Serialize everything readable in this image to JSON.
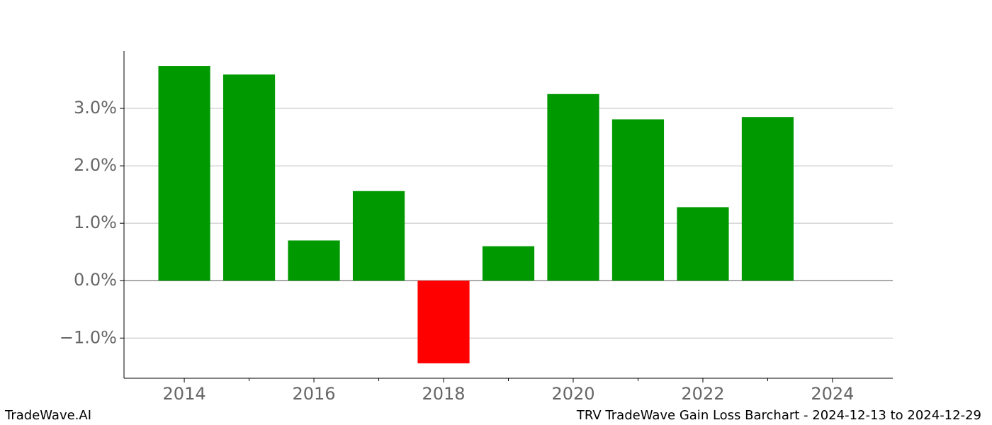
{
  "chart_data": {
    "type": "bar",
    "x": [
      2014,
      2015,
      2016,
      2017,
      2018,
      2019,
      2020,
      2021,
      2022,
      2023
    ],
    "values": [
      3.74,
      3.59,
      0.7,
      1.56,
      -1.44,
      0.6,
      3.25,
      2.81,
      1.28,
      2.85
    ],
    "color_positive": "#009900",
    "color_negative": "#ff0000",
    "xlim": [
      2013.07,
      2024.93
    ],
    "xticks": [
      2014,
      2016,
      2018,
      2020,
      2022,
      2024
    ],
    "xminorticks": [
      2015,
      2017,
      2019,
      2021,
      2023
    ],
    "ylim": [
      -1.7,
      4.0
    ],
    "yticks": [
      {
        "value": -1,
        "label": "−1.0%"
      },
      {
        "value": 0,
        "label": "0.0%"
      },
      {
        "value": 1,
        "label": "1.0%"
      },
      {
        "value": 2,
        "label": "2.0%"
      },
      {
        "value": 3,
        "label": "3.0%"
      }
    ],
    "grid": true,
    "footer_left": "TradeWave.AI",
    "footer_right": "TRV TradeWave Gain Loss Barchart - 2024-12-13 to 2024-12-29"
  }
}
